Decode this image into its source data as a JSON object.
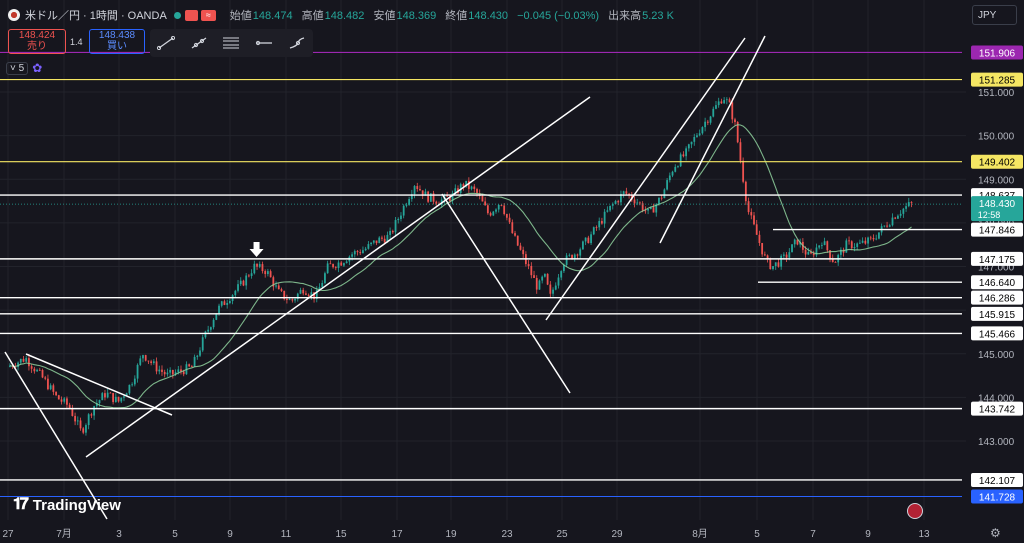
{
  "header": {
    "symbol": "米ドル／円 · 1時間 · OANDA",
    "wave_icon": "≈",
    "open_label": "始値",
    "open": "148.474",
    "high_label": "高値",
    "high": "148.482",
    "low_label": "安値",
    "low": "148.369",
    "close_label": "終値",
    "close": "148.430",
    "change": "−0.045 (−0.03%)",
    "volume_label": "出来高",
    "volume": "5.23 K"
  },
  "trade": {
    "sell_price": "148.424",
    "sell_label": "売り",
    "spread": "1.4",
    "buy_price": "148.438",
    "buy_label": "買い"
  },
  "indicator": {
    "count": "5"
  },
  "currency": "JPY",
  "logo": "TradingView",
  "colors": {
    "bg": "#16161e",
    "up": "#26a69a",
    "down": "#ef5350",
    "ma": "#8fd19e",
    "purple": "#9c27b0",
    "yellow": "#f5e663",
    "blue": "#2962ff",
    "white": "#ffffff"
  },
  "chart_data": {
    "type": "candlestick",
    "symbol": "USD/JPY",
    "timeframe": "1時間",
    "ylim": [
      141.55,
      152.45
    ],
    "y_ticks": [
      "143.000",
      "144.000",
      "145.000",
      "146.000",
      "147.000",
      "148.000",
      "149.000",
      "150.000",
      "151.000"
    ],
    "x_ticks": [
      "27",
      "7月",
      "3",
      "5",
      "9",
      "11",
      "15",
      "17",
      "19",
      "23",
      "25",
      "29",
      "8月",
      "5",
      "7",
      "9",
      "13"
    ],
    "current_price": "148.430",
    "countdown": "12:58",
    "horizontal_levels": [
      {
        "price": "151.906",
        "style": "purple"
      },
      {
        "price": "151.285",
        "style": "yellow"
      },
      {
        "price": "149.402",
        "style": "yellow"
      },
      {
        "price": "148.637",
        "style": "white"
      },
      {
        "price": "147.846",
        "style": "white"
      },
      {
        "price": "147.175",
        "style": "white"
      },
      {
        "price": "146.640",
        "style": "white"
      },
      {
        "price": "146.286",
        "style": "white"
      },
      {
        "price": "145.915",
        "style": "white"
      },
      {
        "price": "145.466",
        "style": "white"
      },
      {
        "price": "143.742",
        "style": "white"
      },
      {
        "price": "142.107",
        "style": "white"
      },
      {
        "price": "141.728",
        "style": "blue"
      }
    ],
    "price_path": [
      [
        0,
        144.7
      ],
      [
        1.5,
        144.9
      ],
      [
        3,
        144.4
      ],
      [
        4,
        144.0
      ],
      [
        5,
        143.8
      ],
      [
        6,
        143.2
      ],
      [
        7,
        143.8
      ],
      [
        8,
        144.1
      ],
      [
        9,
        143.9
      ],
      [
        10,
        144.3
      ],
      [
        11,
        145.0
      ],
      [
        12,
        144.7
      ],
      [
        13,
        144.5
      ],
      [
        15,
        144.7
      ],
      [
        16,
        145.4
      ],
      [
        17,
        146.0
      ],
      [
        19,
        146.6
      ],
      [
        20,
        147.0
      ],
      [
        21,
        146.9
      ],
      [
        22,
        146.4
      ],
      [
        23,
        146.2
      ],
      [
        24,
        146.5
      ],
      [
        25,
        146.3
      ],
      [
        26,
        147.0
      ],
      [
        27,
        147.1
      ],
      [
        28,
        147.3
      ],
      [
        29,
        147.4
      ],
      [
        30,
        147.6
      ],
      [
        31,
        147.7
      ],
      [
        32,
        148.3
      ],
      [
        33,
        148.9
      ],
      [
        34,
        148.6
      ],
      [
        35,
        148.5
      ],
      [
        36,
        148.6
      ],
      [
        37,
        148.9
      ],
      [
        38,
        148.7
      ],
      [
        39,
        148.2
      ],
      [
        40,
        148.5
      ],
      [
        41,
        147.7
      ],
      [
        42,
        147.1
      ],
      [
        43,
        146.5
      ],
      [
        43.5,
        146.8
      ],
      [
        44,
        146.3
      ],
      [
        45,
        147.1
      ],
      [
        46,
        147.3
      ],
      [
        47,
        147.6
      ],
      [
        48,
        148.0
      ],
      [
        49,
        148.4
      ],
      [
        50,
        148.7
      ],
      [
        51,
        148.5
      ],
      [
        52,
        148.2
      ],
      [
        53,
        148.6
      ],
      [
        54,
        149.3
      ],
      [
        55,
        149.6
      ],
      [
        56,
        150.1
      ],
      [
        57,
        150.5
      ],
      [
        58,
        150.9
      ],
      [
        58.5,
        150.7
      ],
      [
        59,
        150.2
      ],
      [
        60,
        148.3
      ],
      [
        61,
        147.5
      ],
      [
        61.5,
        147.1
      ],
      [
        62,
        147.0
      ],
      [
        63,
        147.2
      ],
      [
        64,
        147.6
      ],
      [
        65,
        147.2
      ],
      [
        66,
        147.6
      ],
      [
        67,
        147.1
      ],
      [
        68,
        147.5
      ],
      [
        69,
        147.5
      ],
      [
        70,
        147.6
      ],
      [
        71,
        147.9
      ],
      [
        72,
        148.2
      ],
      [
        73,
        148.4
      ],
      [
        73.3,
        148.43
      ]
    ],
    "arrow_marker_near": "9",
    "trendlines": "white channel and diagonal lines drawn on chart"
  }
}
